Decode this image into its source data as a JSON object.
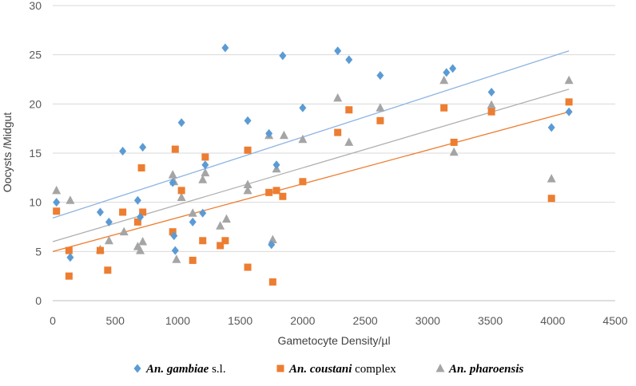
{
  "chart_data": {
    "type": "scatter",
    "title": "",
    "xlabel": "Gametocyte Density/µl",
    "ylabel": "Oocysts /Midgut",
    "xlim": [
      0,
      4500
    ],
    "ylim": [
      0,
      30
    ],
    "xticks": [
      0,
      500,
      1000,
      1500,
      2000,
      2500,
      3000,
      3500,
      4000,
      4500
    ],
    "yticks": [
      0,
      5,
      10,
      15,
      20,
      25,
      30
    ],
    "grid": "horizontal",
    "legend_position": "bottom",
    "series": [
      {
        "name": "An. gambiae s.l.",
        "legend_italic": "An. gambiae",
        "legend_plain": " s.l.",
        "marker": "diamond",
        "color": "#5b9bd5",
        "trend_color": "#8db4e2",
        "trendline": [
          [
            0,
            8.4
          ],
          [
            4130,
            25.4
          ]
        ],
        "points": [
          [
            30,
            10
          ],
          [
            140,
            4.4
          ],
          [
            380,
            9
          ],
          [
            450,
            8
          ],
          [
            560,
            15.2
          ],
          [
            680,
            10.2
          ],
          [
            700,
            8.5
          ],
          [
            720,
            15.6
          ],
          [
            960,
            12
          ],
          [
            970,
            6.6
          ],
          [
            980,
            5.1
          ],
          [
            1030,
            18.1
          ],
          [
            1120,
            8
          ],
          [
            1200,
            8.9
          ],
          [
            1220,
            13.8
          ],
          [
            1380,
            25.7
          ],
          [
            1560,
            18.3
          ],
          [
            1730,
            17
          ],
          [
            1750,
            5.7
          ],
          [
            1790,
            13.8
          ],
          [
            1840,
            24.9
          ],
          [
            2000,
            19.6
          ],
          [
            2280,
            25.4
          ],
          [
            2370,
            24.5
          ],
          [
            2620,
            22.9
          ],
          [
            3150,
            23.2
          ],
          [
            3200,
            23.6
          ],
          [
            3510,
            21.2
          ],
          [
            3990,
            17.6
          ],
          [
            4130,
            19.2
          ]
        ]
      },
      {
        "name": "An. coustani complex",
        "legend_italic": "An. coustani",
        "legend_plain": " complex",
        "marker": "square",
        "color": "#ed7d31",
        "trend_color": "#ed7d31",
        "trendline": [
          [
            0,
            5.0
          ],
          [
            4130,
            19.2
          ]
        ],
        "points": [
          [
            30,
            9.1
          ],
          [
            130,
            5.1
          ],
          [
            130,
            2.5
          ],
          [
            380,
            5.1
          ],
          [
            440,
            3.1
          ],
          [
            560,
            9
          ],
          [
            680,
            8
          ],
          [
            710,
            13.5
          ],
          [
            720,
            9
          ],
          [
            960,
            7
          ],
          [
            980,
            15.4
          ],
          [
            1030,
            11.2
          ],
          [
            1120,
            4.1
          ],
          [
            1200,
            6.1
          ],
          [
            1220,
            14.6
          ],
          [
            1340,
            5.6
          ],
          [
            1380,
            6.1
          ],
          [
            1560,
            3.4
          ],
          [
            1560,
            15.3
          ],
          [
            1730,
            11
          ],
          [
            1760,
            1.9
          ],
          [
            1790,
            11.2
          ],
          [
            1840,
            10.6
          ],
          [
            2000,
            12.1
          ],
          [
            2280,
            17.1
          ],
          [
            2370,
            19.4
          ],
          [
            2620,
            18.3
          ],
          [
            3130,
            19.6
          ],
          [
            3210,
            16.1
          ],
          [
            3510,
            19.2
          ],
          [
            3990,
            10.4
          ],
          [
            4130,
            20.2
          ]
        ]
      },
      {
        "name": "An. pharoensis",
        "legend_italic": "An. pharoensis",
        "legend_plain": "",
        "marker": "triangle",
        "color": "#a5a5a5",
        "trend_color": "#b0b0b0",
        "trendline": [
          [
            0,
            6.0
          ],
          [
            4130,
            21.5
          ]
        ],
        "points": [
          [
            30,
            11.2
          ],
          [
            140,
            10.2
          ],
          [
            380,
            5.2
          ],
          [
            450,
            6.1
          ],
          [
            570,
            7
          ],
          [
            680,
            5.5
          ],
          [
            700,
            5.1
          ],
          [
            720,
            6
          ],
          [
            960,
            12.8
          ],
          [
            970,
            12.1
          ],
          [
            990,
            4.2
          ],
          [
            1030,
            10.5
          ],
          [
            1120,
            8.9
          ],
          [
            1200,
            12.3
          ],
          [
            1220,
            13
          ],
          [
            1340,
            7.6
          ],
          [
            1390,
            8.3
          ],
          [
            1560,
            11.8
          ],
          [
            1560,
            11.2
          ],
          [
            1730,
            16.8
          ],
          [
            1760,
            6.2
          ],
          [
            1790,
            13.4
          ],
          [
            1850,
            16.8
          ],
          [
            2000,
            16.4
          ],
          [
            2280,
            20.6
          ],
          [
            2370,
            16.1
          ],
          [
            2620,
            19.6
          ],
          [
            3130,
            22.4
          ],
          [
            3210,
            15.1
          ],
          [
            3510,
            19.9
          ],
          [
            3990,
            12.4
          ],
          [
            4130,
            22.4
          ]
        ]
      }
    ]
  }
}
